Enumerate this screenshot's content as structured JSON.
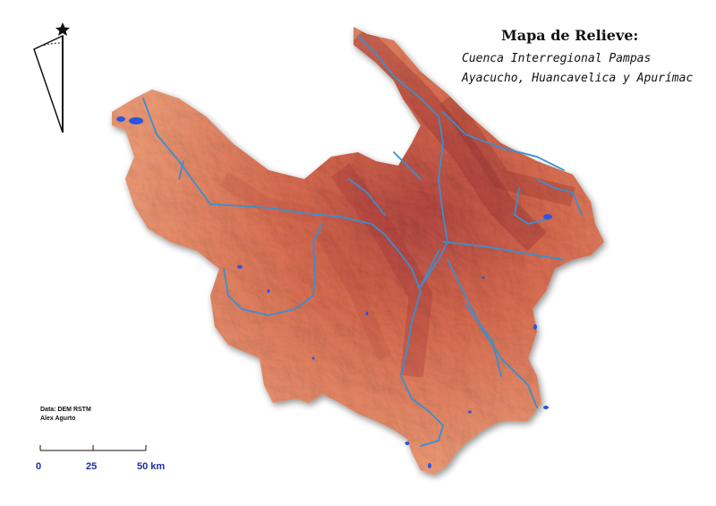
{
  "title": "Mapa de Relieve:",
  "subtitle_line1": "Cuenca Interregional Pampas",
  "subtitle_line2": "Ayacucho, Huancavelica y Apurímac",
  "credits": {
    "data_source": "Data: DEM RSTM",
    "author": "Alex Agurto"
  },
  "scale_bar": {
    "ticks": [
      "0",
      "25",
      "50 km"
    ]
  },
  "north_arrow": {
    "icon": "north-arrow-icon",
    "star_icon": "star-icon"
  },
  "colors": {
    "relief_low": "#f2a47e",
    "relief_mid": "#e27a58",
    "relief_high": "#a8363a",
    "river": "#3a8fd0",
    "lake": "#2a55e0",
    "scale_text": "#1a2fa0"
  }
}
